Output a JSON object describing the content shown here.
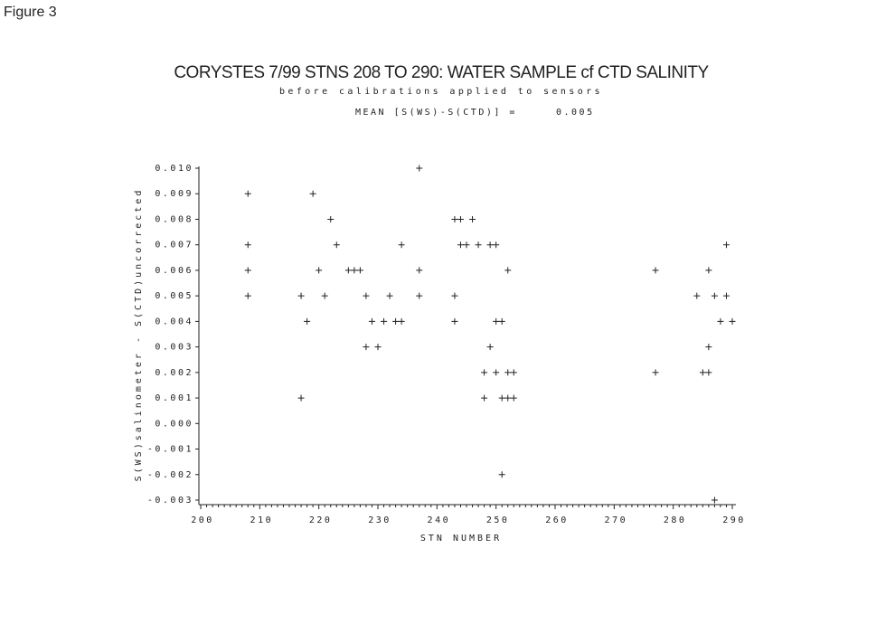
{
  "figure_label": "Figure 3",
  "chart_data": {
    "type": "scatter",
    "title": "CORYSTES 7/99 STNS 208 TO 290: WATER SAMPLE cf CTD SALINITY",
    "subtitle": "before calibrations applied to sensors",
    "annotation": {
      "label": "MEAN [S(WS)-S(CTD)] =",
      "value": 0.005
    },
    "xlabel": "STN NUMBER",
    "ylabel": "S(WS)salinometer - S(CTD)uncorrected",
    "marker": "+",
    "color": "#222222",
    "x": [
      208,
      208,
      208,
      208,
      219,
      222,
      223,
      220,
      225,
      226,
      227,
      217,
      221,
      228,
      232,
      237,
      243,
      218,
      229,
      231,
      233,
      234,
      243,
      250,
      251,
      228,
      230,
      249,
      217,
      234,
      237,
      237,
      243,
      244,
      246,
      244,
      245,
      247,
      249,
      250,
      252,
      248,
      250,
      252,
      253,
      248,
      251,
      252,
      253,
      251,
      277,
      277,
      286,
      289,
      284,
      287,
      289,
      288,
      290,
      286,
      285,
      286,
      287
    ],
    "values": [
      0.009,
      0.007,
      0.006,
      0.005,
      0.009,
      0.008,
      0.007,
      0.006,
      0.006,
      0.006,
      0.006,
      0.005,
      0.005,
      0.005,
      0.005,
      0.005,
      0.005,
      0.004,
      0.004,
      0.004,
      0.004,
      0.004,
      0.004,
      0.004,
      0.004,
      0.003,
      0.003,
      0.003,
      0.001,
      0.007,
      0.01,
      0.006,
      0.008,
      0.008,
      0.008,
      0.007,
      0.007,
      0.007,
      0.007,
      0.007,
      0.006,
      0.002,
      0.002,
      0.002,
      0.002,
      0.001,
      0.001,
      0.001,
      0.001,
      -0.002,
      0.006,
      0.002,
      0.006,
      0.007,
      0.005,
      0.005,
      0.005,
      0.004,
      0.004,
      0.003,
      0.002,
      0.002,
      -0.003
    ],
    "xlim": [
      200,
      290
    ],
    "ylim": [
      -0.003,
      0.01
    ],
    "xticks": [
      200,
      210,
      220,
      230,
      240,
      250,
      260,
      270,
      280,
      290
    ],
    "xminorticks": [
      201,
      202,
      203,
      204,
      205,
      206,
      207,
      208,
      209,
      211,
      212,
      213,
      214,
      215,
      216,
      217,
      218,
      219,
      221,
      222,
      223,
      224,
      225,
      226,
      227,
      228,
      229,
      231,
      232,
      233,
      234,
      235,
      236,
      237,
      238,
      239,
      241,
      242,
      243,
      244,
      245,
      246,
      247,
      248,
      249,
      251,
      252,
      253,
      254,
      255,
      256,
      257,
      258,
      259,
      261,
      262,
      263,
      264,
      265,
      266,
      267,
      268,
      269,
      271,
      272,
      273,
      274,
      275,
      276,
      277,
      278,
      279,
      281,
      282,
      283,
      284,
      285,
      286,
      287,
      288,
      289
    ],
    "yticks": [
      {
        "value": 0.01,
        "label": "0.010"
      },
      0.009,
      0.008,
      0.007,
      0.006,
      0.005,
      0.004,
      0.003,
      0.002,
      0.001,
      {
        "value": 0,
        "label": "0.000"
      },
      -0.001,
      -0.002,
      -0.003
    ],
    "grid": false
  }
}
